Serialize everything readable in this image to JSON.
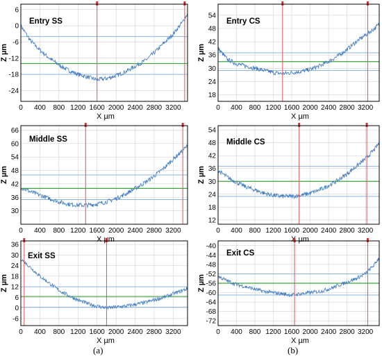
{
  "figure": {
    "caption_a": "(a)",
    "caption_b": "(b)"
  },
  "colors": {
    "profile": "#3a78c0",
    "cursor": "#e05555",
    "marker": "#d43030",
    "band": "#8eb4dc",
    "mean": "#3da33d",
    "grid": "#c8c8c8",
    "frame": "#000000"
  },
  "chart_data": [
    {
      "type": "line",
      "title": "Entry SS",
      "xlabel": "X µm",
      "ylabel": "Z µm",
      "xlim": [
        0,
        3500
      ],
      "ylim": [
        -28,
        8
      ],
      "xticks": [
        "0",
        "400",
        "800",
        "1200",
        "1600",
        "2000",
        "2400",
        "2800",
        "3200"
      ],
      "yticks": [
        "6",
        "0",
        "-6",
        "-12",
        "-18",
        "-24"
      ],
      "series": [
        {
          "x": [
            0,
            200,
            400,
            600,
            800,
            1000,
            1200,
            1400,
            1600,
            1800,
            2000,
            2200,
            2400,
            2600,
            2800,
            3000,
            3200,
            3400,
            3500
          ],
          "y": [
            0,
            -5.5,
            -9,
            -12,
            -14.5,
            -16.5,
            -18,
            -19,
            -20,
            -19.5,
            -18.5,
            -17,
            -15,
            -13,
            -10,
            -6.5,
            -3,
            1.5,
            4.5
          ]
        }
      ],
      "hlines": [
        -4,
        -14,
        -18
      ],
      "cursors": [
        1600,
        3440
      ],
      "grid": true
    },
    {
      "type": "line",
      "title": "Entry CS",
      "xlabel": "X µm",
      "ylabel": "Z µm",
      "xlim": [
        0,
        3500
      ],
      "ylim": [
        15,
        59
      ],
      "xticks": [
        "0",
        "400",
        "800",
        "1200",
        "1600",
        "2000",
        "2400",
        "2800",
        "3200"
      ],
      "yticks": [
        "54",
        "48",
        "42",
        "36",
        "30",
        "24",
        "18"
      ],
      "series": [
        {
          "x": [
            0,
            200,
            400,
            600,
            800,
            1000,
            1200,
            1400,
            1600,
            1800,
            2000,
            2200,
            2400,
            2600,
            2800,
            3000,
            3200,
            3400,
            3500
          ],
          "y": [
            39,
            34,
            32,
            31,
            30,
            29,
            28,
            27.5,
            28,
            28.5,
            29.5,
            31,
            33,
            35.5,
            38.5,
            42,
            45,
            48,
            50
          ]
        }
      ],
      "hlines": [
        37,
        33,
        29
      ],
      "cursors": [
        1400,
        3250
      ],
      "grid": true
    },
    {
      "type": "line",
      "title": "Middle SS",
      "xlabel": "X µm",
      "ylabel": "Z µm",
      "xlim": [
        0,
        3500
      ],
      "ylim": [
        24,
        68
      ],
      "xticks": [
        "0",
        "400",
        "800",
        "1200",
        "1600",
        "2000",
        "2400",
        "2800",
        "3200"
      ],
      "yticks": [
        "66",
        "60",
        "54",
        "48",
        "42",
        "36",
        "30"
      ],
      "series": [
        {
          "x": [
            0,
            200,
            400,
            600,
            800,
            1000,
            1200,
            1400,
            1600,
            1800,
            2000,
            2200,
            2400,
            2600,
            2800,
            3000,
            3200,
            3400,
            3500
          ],
          "y": [
            40.5,
            38.5,
            37,
            35.5,
            34,
            33,
            32.5,
            32.5,
            33,
            34,
            35.5,
            37.5,
            40,
            42.5,
            45.5,
            49,
            53,
            57,
            59
          ]
        }
      ],
      "hlines": [
        46,
        40,
        35
      ],
      "cursors": [
        1360,
        3400
      ],
      "grid": true
    },
    {
      "type": "line",
      "title": "Middle CS",
      "xlabel": "X µm",
      "ylabel": "Z µm",
      "xlim": [
        0,
        3500
      ],
      "ylim": [
        10,
        56
      ],
      "xticks": [
        "0",
        "400",
        "800",
        "1200",
        "1600",
        "2000",
        "2400",
        "2800",
        "3200"
      ],
      "yticks": [
        "54",
        "48",
        "42",
        "36",
        "30",
        "24",
        "18",
        "12"
      ],
      "series": [
        {
          "x": [
            0,
            200,
            400,
            600,
            800,
            1000,
            1200,
            1400,
            1600,
            1800,
            2000,
            2200,
            2400,
            2600,
            2800,
            3000,
            3200,
            3400,
            3500
          ],
          "y": [
            35,
            32,
            29.5,
            27.5,
            26,
            24.5,
            23.5,
            23,
            23,
            23.5,
            24.5,
            26,
            28,
            30.5,
            33.5,
            37,
            40.5,
            45,
            48
          ]
        }
      ],
      "hlines": [
        37,
        30,
        23
      ],
      "cursors": [
        1760,
        3230
      ],
      "grid": true
    },
    {
      "type": "line",
      "title": "Exit SS",
      "xlabel": "X µm",
      "ylabel": "Z µm",
      "xlim": [
        0,
        3500
      ],
      "ylim": [
        -10,
        38
      ],
      "xticks": [
        "0",
        "400",
        "800",
        "1200",
        "1600",
        "2000",
        "2400",
        "2800",
        "3200"
      ],
      "yticks": [
        "36",
        "30",
        "24",
        "18",
        "12",
        "6",
        "0",
        "-6"
      ],
      "series": [
        {
          "x": [
            0,
            200,
            400,
            600,
            800,
            1000,
            1200,
            1400,
            1600,
            1800,
            2000,
            2200,
            2400,
            2600,
            2800,
            3000,
            3200,
            3400,
            3500
          ],
          "y": [
            28,
            23,
            18,
            14,
            10,
            7,
            4.5,
            2.5,
            1,
            0,
            0.5,
            1,
            2,
            3,
            4.5,
            6,
            8,
            10,
            11
          ]
        }
      ],
      "hlines": [
        12,
        6.5,
        0.5
      ],
      "cursors": [
        70,
        1800
      ],
      "grid": true
    },
    {
      "type": "line",
      "title": "Exit CS",
      "xlabel": "X µm",
      "ylabel": "Z µm",
      "xlim": [
        0,
        3500
      ],
      "ylim": [
        -74,
        -38
      ],
      "xticks": [
        "0",
        "400",
        "800",
        "1200",
        "1600",
        "2000",
        "2400",
        "2800",
        "3200"
      ],
      "yticks": [
        "-40",
        "-44",
        "-48",
        "-52",
        "-56",
        "-60",
        "-64",
        "-68",
        "-72"
      ],
      "series": [
        {
          "x": [
            0,
            200,
            400,
            600,
            800,
            1000,
            1200,
            1400,
            1600,
            1800,
            2000,
            2200,
            2400,
            2600,
            2800,
            3000,
            3200,
            3400,
            3500
          ],
          "y": [
            -53,
            -55,
            -56.5,
            -57.5,
            -58.5,
            -59.5,
            -60,
            -60.5,
            -61,
            -60.5,
            -60,
            -59.5,
            -58.5,
            -57,
            -55.5,
            -54,
            -52,
            -48,
            -45
          ]
        }
      ],
      "hlines": [
        -52,
        -56,
        -61
      ],
      "cursors": [
        1660,
        3250
      ],
      "grid": true
    }
  ]
}
